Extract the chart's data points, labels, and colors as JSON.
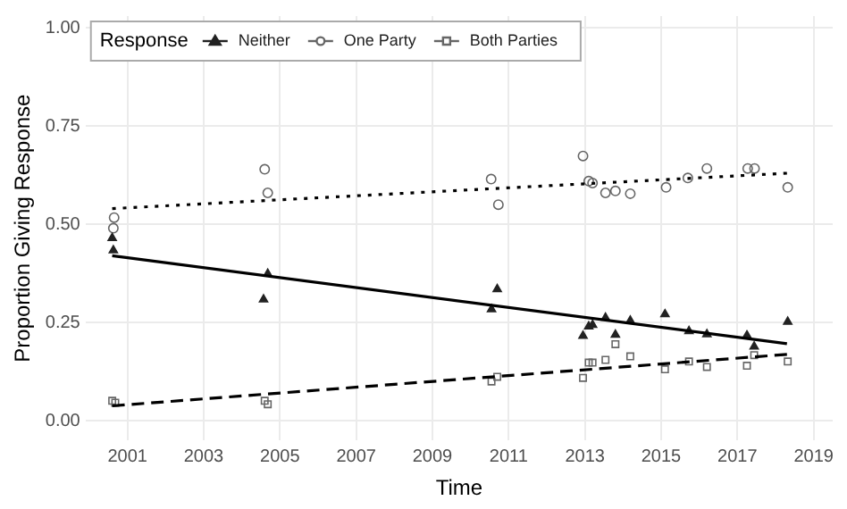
{
  "chart_data": {
    "type": "scatter",
    "xlabel": "Time",
    "ylabel": "Proportion Giving Response",
    "legend_title": "Response",
    "legend": "top left",
    "grid": true,
    "xlim": [
      1999.9,
      2019.5
    ],
    "xticks": [
      2001,
      2003,
      2005,
      2007,
      2009,
      2011,
      2013,
      2015,
      2017,
      2019
    ],
    "ylim": [
      -0.05,
      1.03
    ],
    "yticks": [
      {
        "value": 0,
        "label": "0.00"
      },
      {
        "value": 0.25,
        "label": "0.25"
      },
      {
        "value": 0.5,
        "label": "0.50"
      },
      {
        "value": 0.75,
        "label": "0.75"
      },
      {
        "value": 1,
        "label": "1.00"
      }
    ],
    "series": [
      {
        "name": "Neither",
        "color": "#222222",
        "marker": "triangle",
        "x": [
          2000.6,
          2000.63,
          2004.68,
          2004.57,
          2010.55,
          2010.7,
          2012.95,
          2013.1,
          2013.2,
          2013.54,
          2013.8,
          2014.19,
          2015.1,
          2015.73,
          2016.2,
          2017.25,
          2017.44,
          2018.32
        ],
        "values": [
          0.465,
          0.434,
          0.374,
          0.309,
          0.284,
          0.335,
          0.216,
          0.24,
          0.244,
          0.262,
          0.219,
          0.255,
          0.271,
          0.228,
          0.22,
          0.217,
          0.189,
          0.252
        ]
      },
      {
        "name": "One Party",
        "color": "#666666",
        "marker": "circle",
        "x": [
          2000.63,
          2000.65,
          2004.6,
          2004.68,
          2010.54,
          2010.73,
          2012.95,
          2013.1,
          2013.2,
          2013.54,
          2013.8,
          2014.19,
          2015.13,
          2015.7,
          2016.2,
          2017.27,
          2017.45,
          2018.32
        ],
        "values": [
          0.49,
          0.517,
          0.64,
          0.58,
          0.615,
          0.55,
          0.674,
          0.61,
          0.605,
          0.58,
          0.585,
          0.578,
          0.594,
          0.618,
          0.642,
          0.642,
          0.642,
          0.594
        ]
      },
      {
        "name": "Both Parties",
        "color": "#666666",
        "marker": "square",
        "x": [
          2000.6,
          2000.68,
          2004.6,
          2004.68,
          2010.55,
          2010.7,
          2012.95,
          2013.1,
          2013.2,
          2013.54,
          2013.8,
          2014.19,
          2015.1,
          2015.73,
          2016.2,
          2017.25,
          2017.44,
          2018.32
        ],
        "values": [
          0.051,
          0.046,
          0.051,
          0.042,
          0.1,
          0.112,
          0.109,
          0.148,
          0.148,
          0.155,
          0.195,
          0.164,
          0.131,
          0.151,
          0.137,
          0.14,
          0.167,
          0.151
        ]
      },
      {
        "type": "line",
        "color": "#000000",
        "marker": "none",
        "line_style": "solid",
        "x": [
          2000.6,
          2018.3
        ],
        "values": [
          0.42,
          0.196
        ]
      },
      {
        "type": "line",
        "color": "#000000",
        "marker": "none",
        "line_style": "dotted",
        "x": [
          2000.6,
          2018.3
        ],
        "values": [
          0.54,
          0.63
        ]
      },
      {
        "type": "line",
        "color": "#000000",
        "marker": "none",
        "line_style": "dashed",
        "x": [
          2000.6,
          2018.3
        ],
        "values": [
          0.038,
          0.169
        ]
      }
    ]
  }
}
